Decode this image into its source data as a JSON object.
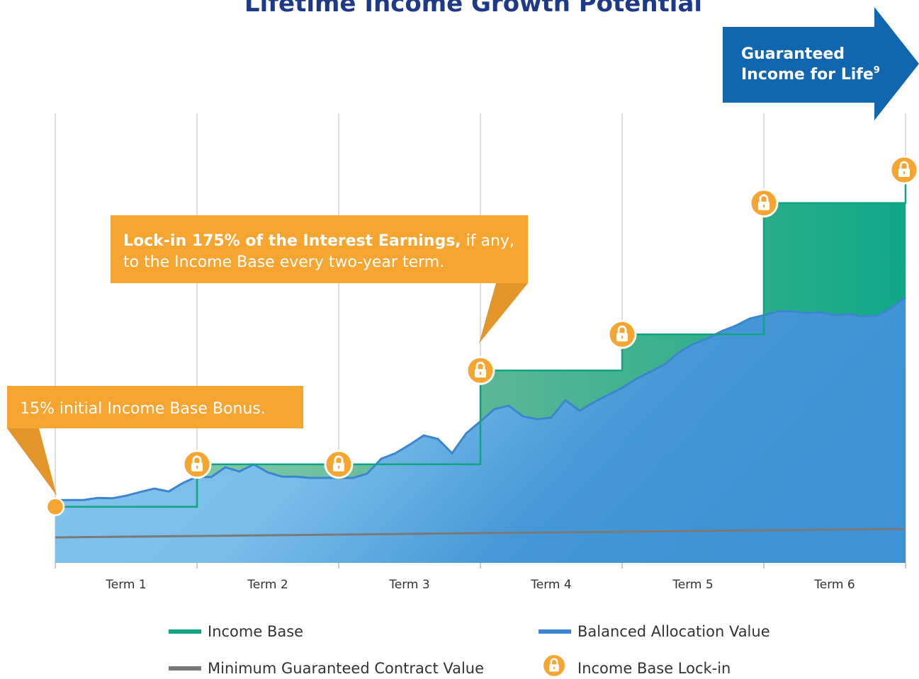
{
  "chart_data": {
    "type": "area",
    "title": "Lifetime Income Growth Potential",
    "categories": [
      "Term 1",
      "Term 2",
      "Term 3",
      "Term 4",
      "Term 5",
      "Term 6"
    ],
    "xlim": [
      0,
      6
    ],
    "ylim": [
      0,
      100
    ],
    "series": [
      {
        "name": "Income Base",
        "color": "#12a384",
        "x": [
          0,
          1,
          2,
          3,
          4,
          5,
          6
        ],
        "values": [
          13.2,
          23.2,
          23.2,
          45.3,
          53.8,
          84.7,
          92.5
        ]
      },
      {
        "name": "Balanced Allocation Value",
        "color": "#3d86cf",
        "x": [
          0,
          0.1,
          0.2,
          0.3,
          0.4,
          0.5,
          0.6,
          0.7,
          0.8,
          0.9,
          1,
          1.1,
          1.2,
          1.3,
          1.4,
          1.5,
          1.6,
          1.7,
          1.8,
          1.9,
          2,
          2.1,
          2.2,
          2.3,
          2.4,
          2.5,
          2.6,
          2.7,
          2.8,
          2.9,
          3,
          3.1,
          3.2,
          3.3,
          3.4,
          3.5,
          3.6,
          3.7,
          3.8,
          3.9,
          4,
          4.1,
          4.2,
          4.3,
          4.4,
          4.5,
          4.6,
          4.7,
          4.8,
          4.9,
          5,
          5.1,
          5.2,
          5.3,
          5.4,
          5.5,
          5.6,
          5.7,
          5.8,
          5.9,
          6
        ],
        "values": [
          14.8,
          14.8,
          14.8,
          15.3,
          15.2,
          15.8,
          16.7,
          17.5,
          16.8,
          18.8,
          20.3,
          20.2,
          22.5,
          21.5,
          23.2,
          21.3,
          20.3,
          20.3,
          20,
          20,
          20,
          20,
          21,
          24.5,
          25.8,
          27.8,
          30,
          29.2,
          25.8,
          30.5,
          33.3,
          36.2,
          37,
          34.5,
          33.8,
          34.2,
          38.3,
          35.8,
          37.8,
          39.5,
          41.2,
          43.3,
          45,
          46.7,
          49.5,
          51.5,
          52.8,
          54.5,
          55.8,
          57.5,
          58.3,
          59.2,
          59.2,
          58.8,
          59,
          58.3,
          58.5,
          58,
          58.2,
          60,
          62.5
        ]
      },
      {
        "name": "Minimum Guaranteed Contract Value",
        "color": "#7a7a7a",
        "x": [
          0,
          6
        ],
        "values": [
          6,
          8
        ]
      }
    ],
    "marker_legend": "Income Base Lock-in",
    "marker_color": "#f6a531",
    "callouts": [
      {
        "bold": "Lock-in 175% of the Interest Earnings,",
        "rest": " if any,",
        "line2": "to the Income Base every two-year term."
      },
      {
        "bold": "15% initial Income Base Bonus."
      }
    ],
    "arrow": {
      "line1": "Guaranteed",
      "line2": "Income for Life",
      "sup": "9"
    }
  }
}
